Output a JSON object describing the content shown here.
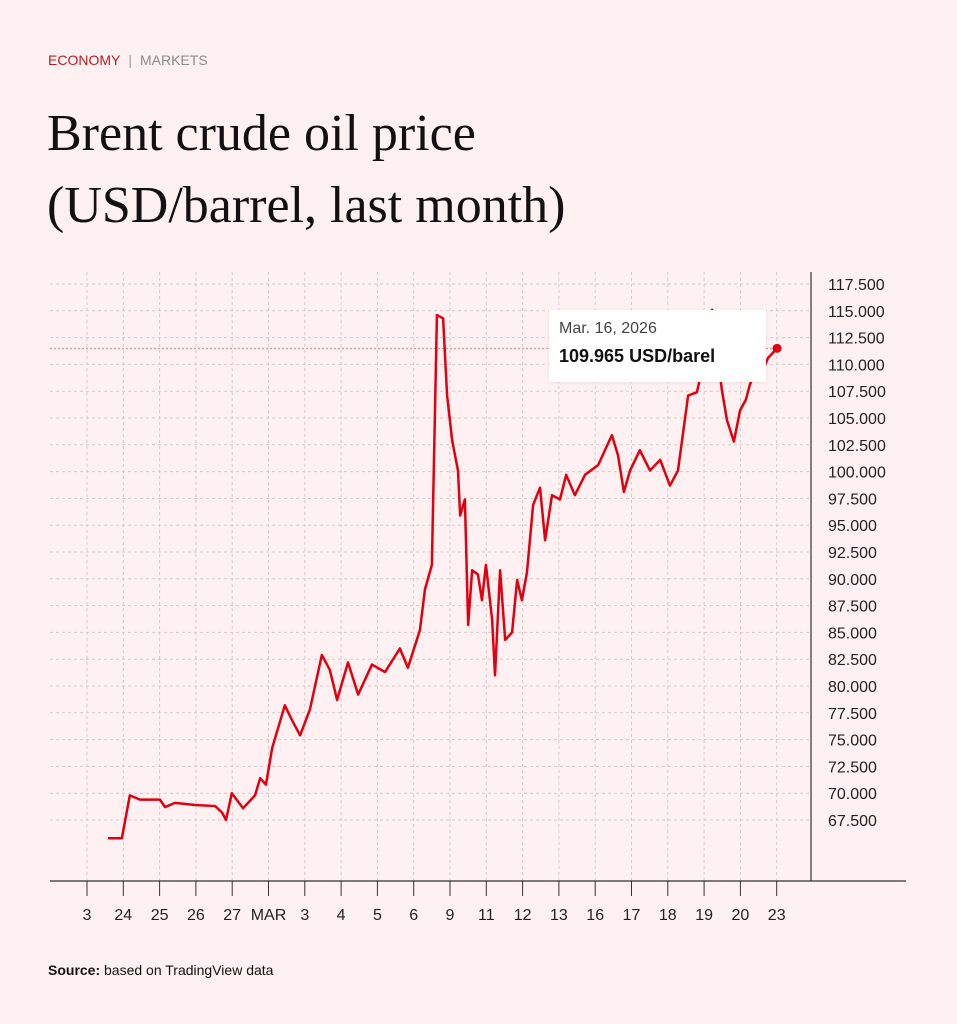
{
  "header": {
    "section": "ECONOMY",
    "separator": "|",
    "subsection": "MARKETS"
  },
  "title_lines": [
    "Brent crude oil price",
    "(USD/barrel, last month)"
  ],
  "tooltip": {
    "date": "Mar. 16, 2026",
    "value": "109.965 USD/barel"
  },
  "source": {
    "label": "Source:",
    "text": " based on TradingView data"
  },
  "colors": {
    "line": "#e0000f",
    "background": "#fff1f1",
    "section": "#b81c22"
  },
  "chart_data": {
    "type": "line",
    "title": "Brent crude oil price (USD/barrel, last month)",
    "xlabel": "",
    "ylabel": "USD/barrel",
    "categories": [
      "3",
      "24",
      "25",
      "26",
      "27",
      "MAR",
      "3",
      "4",
      "5",
      "6",
      "9",
      "11",
      "12",
      "13",
      "16",
      "17",
      "18",
      "19",
      "20",
      "23"
    ],
    "y_ticks": [
      "117.500",
      "115.000",
      "112.500",
      "110.000",
      "107.500",
      "105.000",
      "102.500",
      "100.000",
      "97.500",
      "95.000",
      "92.500",
      "90.000",
      "87.500",
      "85.000",
      "82.500",
      "80.000",
      "77.500",
      "75.000",
      "72.500",
      "70.000",
      "67.500"
    ],
    "ylim": [
      67.5,
      117.5
    ],
    "grid": true,
    "series": [
      {
        "name": "Brent",
        "x_unit": "category index",
        "points": [
          [
            0.58,
            65.8
          ],
          [
            0.96,
            65.8
          ],
          [
            1.18,
            69.8
          ],
          [
            1.46,
            69.4
          ],
          [
            2.01,
            69.4
          ],
          [
            2.15,
            68.7
          ],
          [
            2.42,
            69.1
          ],
          [
            2.98,
            68.9
          ],
          [
            3.53,
            68.8
          ],
          [
            3.72,
            68.2
          ],
          [
            3.83,
            67.5
          ],
          [
            3.99,
            70.0
          ],
          [
            4.3,
            68.6
          ],
          [
            4.63,
            69.8
          ],
          [
            4.77,
            71.4
          ],
          [
            4.93,
            70.8
          ],
          [
            5.1,
            74.2
          ],
          [
            5.45,
            78.2
          ],
          [
            5.65,
            76.8
          ],
          [
            5.87,
            75.4
          ],
          [
            6.14,
            77.8
          ],
          [
            6.47,
            82.9
          ],
          [
            6.69,
            81.5
          ],
          [
            6.89,
            78.7
          ],
          [
            7.19,
            82.2
          ],
          [
            7.47,
            79.2
          ],
          [
            7.85,
            82.0
          ],
          [
            8.21,
            81.3
          ],
          [
            8.62,
            83.5
          ],
          [
            8.84,
            81.7
          ],
          [
            9.17,
            85.2
          ],
          [
            9.31,
            89.0
          ],
          [
            9.5,
            91.3
          ],
          [
            9.64,
            114.6
          ],
          [
            9.81,
            114.3
          ],
          [
            9.92,
            107.1
          ],
          [
            10.06,
            102.9
          ],
          [
            10.22,
            100.1
          ],
          [
            10.28,
            95.9
          ],
          [
            10.41,
            97.4
          ],
          [
            10.5,
            85.7
          ],
          [
            10.61,
            90.8
          ],
          [
            10.77,
            90.4
          ],
          [
            10.88,
            88.0
          ],
          [
            10.99,
            91.3
          ],
          [
            11.16,
            86.2
          ],
          [
            11.24,
            81.0
          ],
          [
            11.38,
            90.8
          ],
          [
            11.52,
            84.3
          ],
          [
            11.71,
            85.0
          ],
          [
            11.85,
            89.9
          ],
          [
            11.98,
            88.0
          ],
          [
            12.12,
            90.6
          ],
          [
            12.29,
            96.9
          ],
          [
            12.48,
            98.5
          ],
          [
            12.62,
            93.6
          ],
          [
            12.81,
            97.8
          ],
          [
            13.03,
            97.4
          ],
          [
            13.2,
            99.7
          ],
          [
            13.44,
            97.8
          ],
          [
            13.72,
            99.7
          ],
          [
            14.08,
            100.6
          ],
          [
            14.27,
            102.0
          ],
          [
            14.46,
            103.4
          ],
          [
            14.63,
            101.5
          ],
          [
            14.79,
            98.1
          ],
          [
            14.96,
            100.1
          ],
          [
            15.23,
            102.0
          ],
          [
            15.51,
            100.1
          ],
          [
            15.79,
            101.1
          ],
          [
            16.06,
            98.7
          ],
          [
            16.28,
            100.1
          ],
          [
            16.56,
            107.1
          ],
          [
            16.8,
            107.4
          ],
          [
            16.89,
            108.7
          ],
          [
            17.02,
            110.9
          ],
          [
            17.22,
            115.1
          ],
          [
            17.33,
            111.8
          ],
          [
            17.49,
            107.6
          ],
          [
            17.63,
            104.8
          ],
          [
            17.82,
            102.8
          ],
          [
            17.99,
            105.7
          ],
          [
            18.15,
            106.7
          ],
          [
            18.26,
            108.1
          ],
          [
            18.43,
            109.5
          ],
          [
            18.6,
            109.3
          ],
          [
            18.76,
            110.6
          ],
          [
            19.01,
            111.5
          ]
        ]
      }
    ],
    "highlight": {
      "date": "Mar. 16, 2026",
      "value": 109.965
    }
  }
}
